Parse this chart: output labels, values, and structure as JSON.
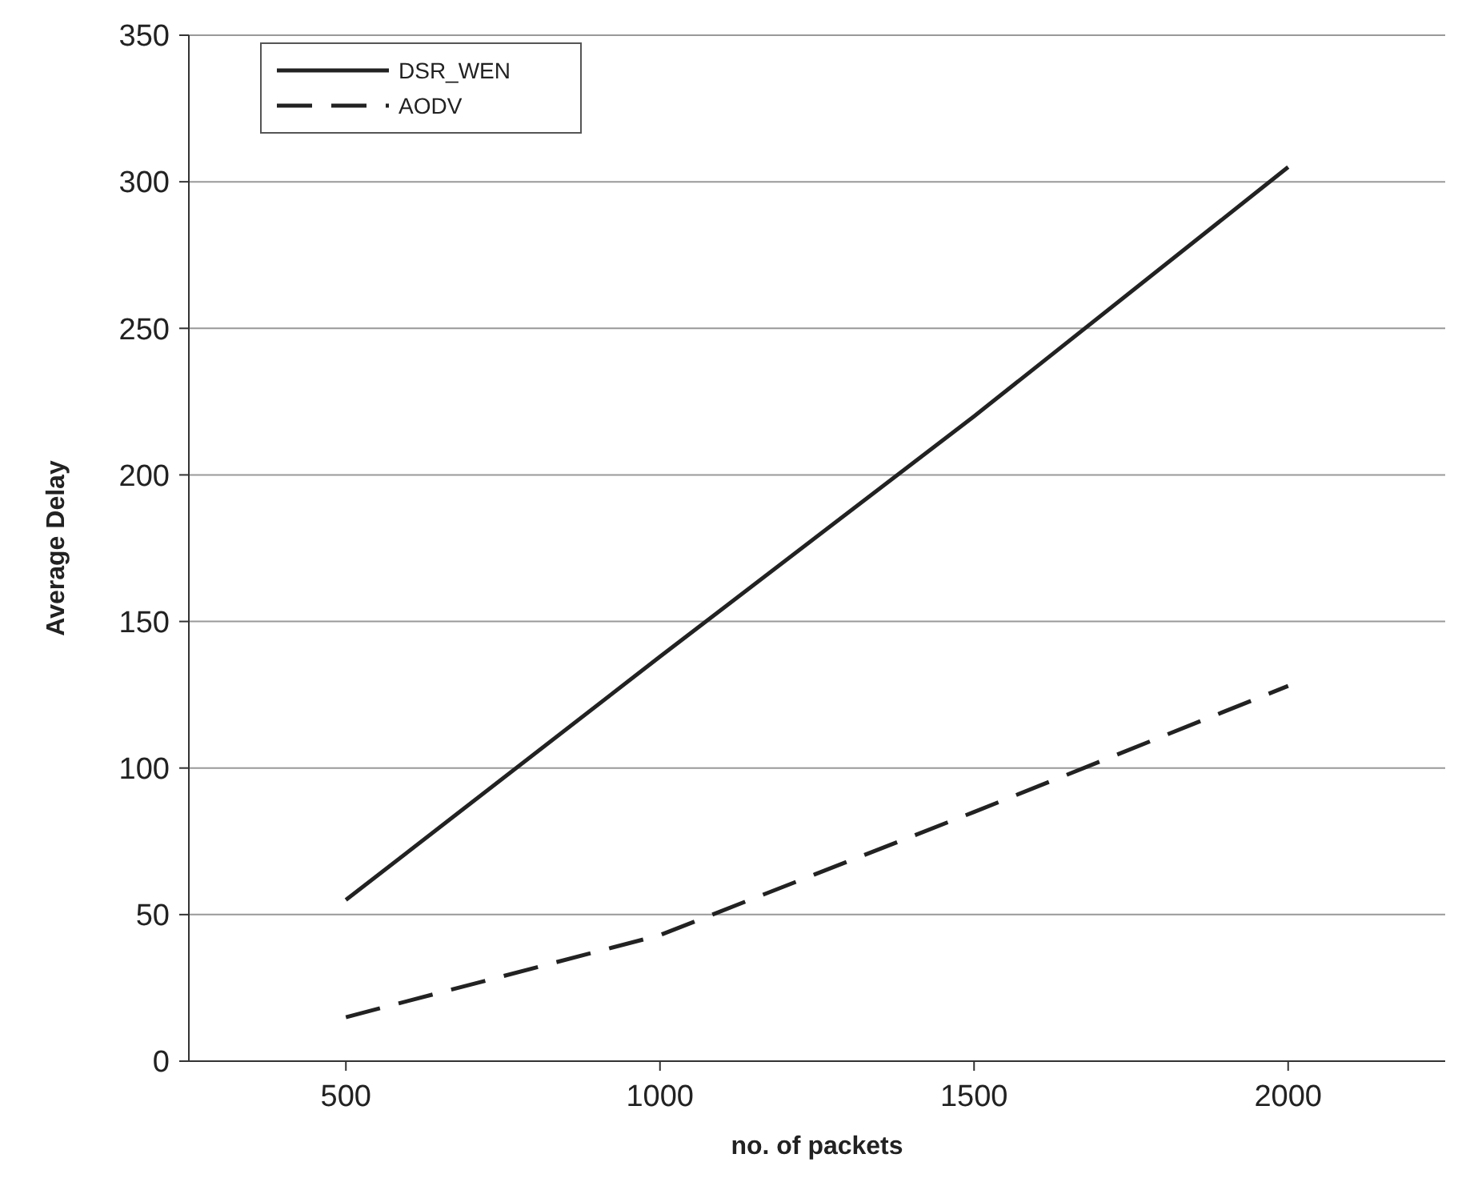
{
  "chart_data": {
    "type": "line",
    "xlabel": "no. of packets",
    "ylabel": "Average Delay",
    "x": [
      500,
      1000,
      1500,
      2000
    ],
    "series": [
      {
        "name": "DSR_WEN",
        "color": "#222222",
        "values": [
          55,
          138,
          220,
          305
        ],
        "line_style": "solid"
      },
      {
        "name": "AODV",
        "color": "#222222",
        "values": [
          15,
          43,
          85,
          128
        ],
        "line_style": "dashed"
      }
    ],
    "xlim": [
      250,
      2250
    ],
    "xticks": [
      500,
      1000,
      1500,
      2000
    ],
    "ylim": [
      0,
      350
    ],
    "yticks": [
      0,
      50,
      100,
      150,
      200,
      250,
      300,
      350
    ],
    "grid": "y",
    "legend": "top left",
    "marker": "none"
  }
}
